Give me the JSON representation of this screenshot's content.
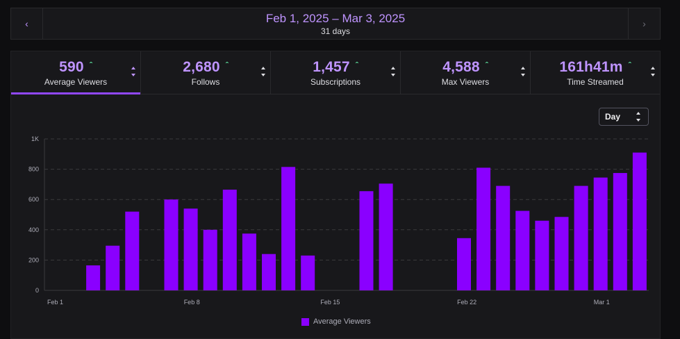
{
  "date_nav": {
    "range": "Feb 1, 2025 – Mar 3, 2025",
    "days": "31 days",
    "prev_icon": "chevron-left-icon",
    "next_icon": "chevron-right-icon"
  },
  "stats": [
    {
      "value": "590",
      "label": "Average Viewers",
      "active": true
    },
    {
      "value": "2,680",
      "label": "Follows",
      "active": false
    },
    {
      "value": "1,457",
      "label": "Subscriptions",
      "active": false
    },
    {
      "value": "4,588",
      "label": "Max Viewers",
      "active": false
    },
    {
      "value": "161h41m",
      "label": "Time Streamed",
      "active": false
    }
  ],
  "granularity": {
    "selected": "Day"
  },
  "colors": {
    "accent": "#bf94ff",
    "bar": "#8a00ff",
    "trend_up": "#5ee5a0"
  },
  "chart_data": {
    "type": "bar",
    "x_tick_labels": [
      "Feb 1",
      "Feb 8",
      "Feb 15",
      "Feb 22",
      "Mar 1"
    ],
    "y_tick_labels": [
      "0",
      "200",
      "400",
      "600",
      "800",
      "1K"
    ],
    "ylim": [
      0,
      1000
    ],
    "categories": [
      "Feb 1",
      "Feb 2",
      "Feb 3",
      "Feb 4",
      "Feb 5",
      "Feb 6",
      "Feb 7",
      "Feb 8",
      "Feb 9",
      "Feb 10",
      "Feb 11",
      "Feb 12",
      "Feb 13",
      "Feb 14",
      "Feb 15",
      "Feb 16",
      "Feb 17",
      "Feb 18",
      "Feb 19",
      "Feb 20",
      "Feb 21",
      "Feb 22",
      "Feb 23",
      "Feb 24",
      "Feb 25",
      "Feb 26",
      "Feb 27",
      "Feb 28",
      "Mar 1",
      "Mar 2",
      "Mar 3"
    ],
    "series": [
      {
        "name": "Average Viewers",
        "values": [
          0,
          165,
          295,
          520,
          0,
          600,
          540,
          400,
          665,
          375,
          240,
          815,
          230,
          0,
          0,
          655,
          705,
          0,
          0,
          0,
          345,
          810,
          690,
          525,
          460,
          485,
          690,
          745,
          775,
          910,
          0
        ]
      }
    ],
    "grid": true,
    "legend": "bottom-center"
  }
}
